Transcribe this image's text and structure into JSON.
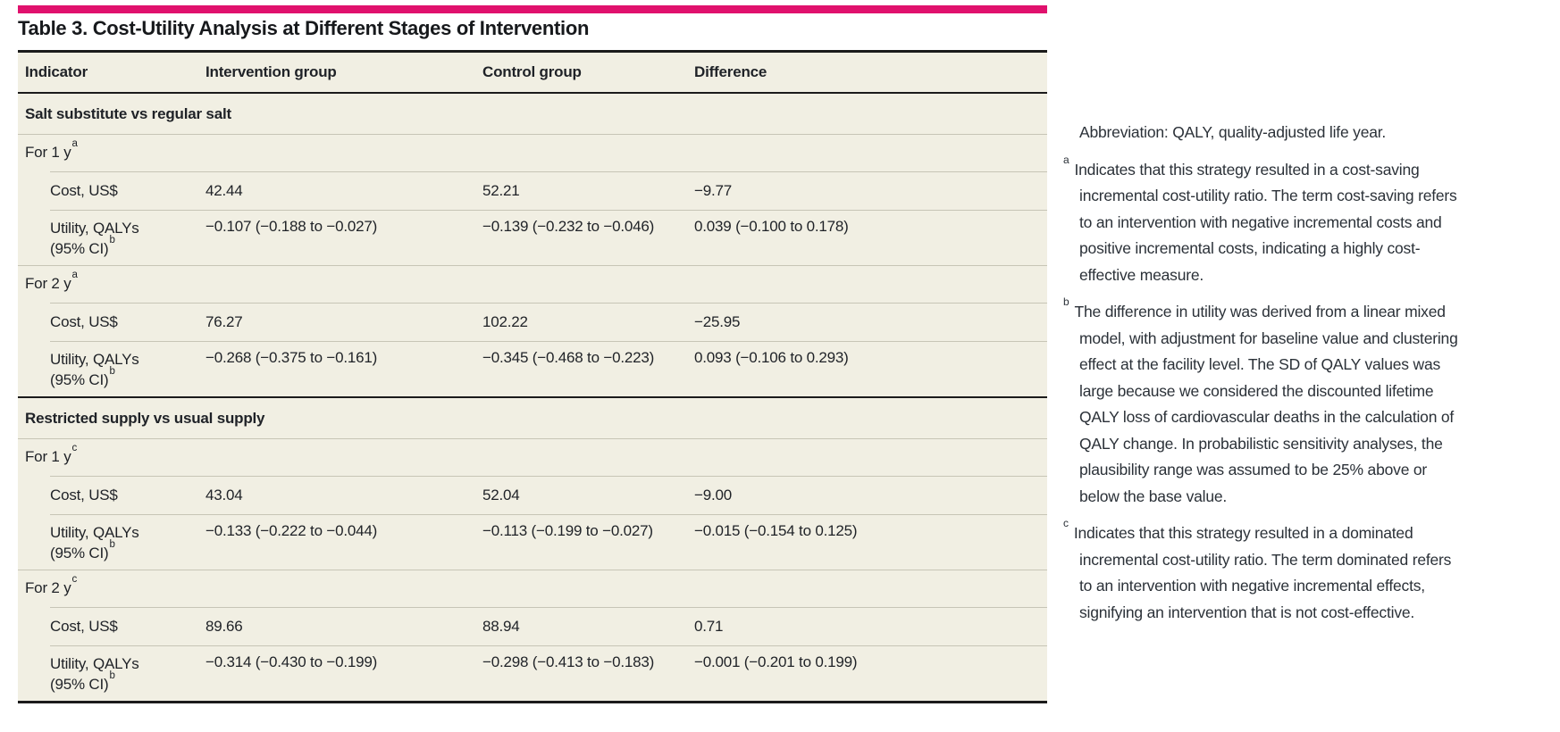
{
  "colors": {
    "accent_pink": "#e0116d",
    "table_background": "#f1efe3",
    "rule_dark": "#1b1b1b",
    "rule_light": "#c7c5b6"
  },
  "title": "Table 3. Cost-Utility Analysis at Different Stages of Intervention",
  "table": {
    "columns": [
      "Indicator",
      "Intervention group",
      "Control group",
      "Difference"
    ],
    "sections": [
      {
        "heading": "Salt substitute vs regular salt",
        "periods": [
          {
            "label": "For 1 y",
            "sup": "a",
            "rows": [
              {
                "label": "Cost, US$",
                "values": [
                  "42.44",
                  "52.21",
                  "−9.77"
                ]
              },
              {
                "label_line1": "Utility, QALYs",
                "label_line2": "(95% CI)",
                "label_sup": "b",
                "values": [
                  "−0.107 (−0.188 to −0.027)",
                  "−0.139 (−0.232 to −0.046)",
                  "0.039 (−0.100 to 0.178)"
                ]
              }
            ]
          },
          {
            "label": "For 2 y",
            "sup": "a",
            "rows": [
              {
                "label": "Cost, US$",
                "values": [
                  "76.27",
                  "102.22",
                  "−25.95"
                ]
              },
              {
                "label_line1": "Utility, QALYs",
                "label_line2": "(95% CI)",
                "label_sup": "b",
                "values": [
                  "−0.268 (−0.375 to −0.161)",
                  "−0.345 (−0.468 to −0.223)",
                  "0.093 (−0.106 to 0.293)"
                ]
              }
            ]
          }
        ]
      },
      {
        "heading": "Restricted supply vs usual supply",
        "periods": [
          {
            "label": "For 1 y",
            "sup": "c",
            "rows": [
              {
                "label": "Cost, US$",
                "values": [
                  "43.04",
                  "52.04",
                  "−9.00"
                ]
              },
              {
                "label_line1": "Utility, QALYs",
                "label_line2": "(95% CI)",
                "label_sup": "b",
                "values": [
                  "−0.133 (−0.222 to −0.044)",
                  "−0.113 (−0.199 to −0.027)",
                  "−0.015 (−0.154 to 0.125)"
                ]
              }
            ]
          },
          {
            "label": "For 2 y",
            "sup": "c",
            "rows": [
              {
                "label": "Cost, US$",
                "values": [
                  "89.66",
                  "88.94",
                  "0.71"
                ]
              },
              {
                "label_line1": "Utility, QALYs",
                "label_line2": "(95% CI)",
                "label_sup": "b",
                "values": [
                  "−0.314 (−0.430 to −0.199)",
                  "−0.298 (−0.413 to −0.183)",
                  "−0.001 (−0.201 to 0.199)"
                ]
              }
            ]
          }
        ]
      }
    ]
  },
  "notes": {
    "abbreviation": "Abbreviation: QALY, quality-adjusted life year.",
    "footnotes": [
      {
        "marker": "a",
        "text": "Indicates that this strategy resulted in a cost-saving incremental cost-utility ratio. The term cost-saving refers to an intervention with negative incremental costs and positive incremental costs, indicating a highly cost-effective measure."
      },
      {
        "marker": "b",
        "text": "The difference in utility was derived from a linear mixed model, with adjustment for baseline value and clustering effect at the facility level. The SD of QALY values was large because we considered the discounted lifetime QALY loss of cardiovascular deaths in the calculation of QALY change. In probabilistic sensitivity analyses, the plausibility range was assumed to be 25% above or below the base value."
      },
      {
        "marker": "c",
        "text": "Indicates that this strategy resulted in a dominated incremental cost-utility ratio. The term dominated refers to an intervention with negative incremental effects, signifying an intervention that is not cost-effective."
      }
    ]
  }
}
